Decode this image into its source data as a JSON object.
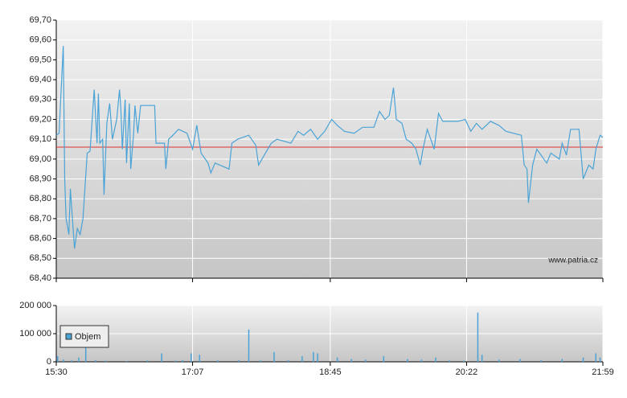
{
  "chart_data": [
    {
      "type": "line",
      "color": "#4aa3d6",
      "watermark": "www.patria.cz",
      "reference_line": 69.06,
      "reference_color": "#e03030",
      "x": [
        "15:30",
        "15:32",
        "15:35",
        "15:36",
        "15:37",
        "15:39",
        "15:40",
        "15:43",
        "15:45",
        "15:47",
        "15:49",
        "15:52",
        "15:54",
        "15:57",
        "15:59",
        "16:00",
        "16:01",
        "16:03",
        "16:04",
        "16:06",
        "16:08",
        "16:10",
        "16:13",
        "16:15",
        "16:16",
        "16:17",
        "16:19",
        "16:20",
        "16:22",
        "16:23",
        "16:25",
        "16:26",
        "16:28",
        "16:30",
        "16:33",
        "16:40",
        "16:41",
        "16:47",
        "16:48",
        "16:50",
        "16:53",
        "16:57",
        "17:03",
        "17:07",
        "17:10",
        "17:13",
        "17:18",
        "17:20",
        "17:23",
        "17:33",
        "17:35",
        "17:39",
        "17:47",
        "17:52",
        "17:54",
        "17:58",
        "18:03",
        "18:07",
        "18:17",
        "18:22",
        "18:26",
        "18:31",
        "18:36",
        "18:41",
        "18:46",
        "18:50",
        "18:55",
        "19:02",
        "19:08",
        "19:16",
        "19:20",
        "19:24",
        "19:27",
        "19:30",
        "19:32",
        "19:36",
        "19:39",
        "19:43",
        "19:46",
        "19:49",
        "19:51",
        "19:54",
        "19:59",
        "20:02",
        "20:05",
        "20:16",
        "20:21",
        "20:25",
        "20:29",
        "20:33",
        "20:39",
        "20:45",
        "20:50",
        "21:01",
        "21:03",
        "21:05",
        "21:06",
        "21:09",
        "21:12",
        "21:19",
        "21:22",
        "21:28",
        "21:30",
        "21:33",
        "21:36",
        "21:42",
        "21:45",
        "21:49",
        "21:52",
        "21:54",
        "21:57",
        "21:59"
      ],
      "values": [
        69.12,
        69.13,
        69.57,
        68.9,
        68.7,
        68.62,
        68.85,
        68.55,
        68.65,
        68.62,
        68.7,
        69.03,
        69.04,
        69.35,
        69.08,
        69.33,
        69.08,
        69.1,
        68.82,
        69.18,
        69.28,
        69.1,
        69.2,
        69.35,
        69.25,
        69.05,
        69.3,
        68.98,
        69.28,
        68.95,
        69.12,
        69.27,
        69.13,
        69.27,
        69.27,
        69.27,
        69.08,
        69.08,
        68.95,
        69.1,
        69.12,
        69.15,
        69.13,
        69.05,
        69.17,
        69.03,
        68.98,
        68.93,
        68.98,
        68.95,
        69.08,
        69.1,
        69.12,
        69.07,
        68.97,
        69.02,
        69.08,
        69.1,
        69.08,
        69.14,
        69.12,
        69.15,
        69.1,
        69.14,
        69.2,
        69.17,
        69.14,
        69.13,
        69.16,
        69.16,
        69.24,
        69.2,
        69.22,
        69.36,
        69.2,
        69.18,
        69.1,
        69.08,
        69.05,
        68.97,
        69.05,
        69.15,
        69.05,
        69.23,
        69.19,
        69.19,
        69.2,
        69.14,
        69.18,
        69.15,
        69.19,
        69.17,
        69.14,
        69.12,
        68.97,
        68.95,
        68.78,
        68.97,
        69.05,
        68.98,
        69.03,
        69.0,
        69.08,
        69.02,
        69.15,
        69.15,
        68.9,
        68.97,
        68.95,
        69.05,
        69.12,
        69.11
      ],
      "xlim": [
        "15:30",
        "21:59"
      ],
      "xticks": [
        "15:30",
        "17:07",
        "18:45",
        "20:22",
        "21:59"
      ],
      "ylim": [
        68.4,
        69.7
      ],
      "yticks": [
        {
          "value": 68.4,
          "label": "68,40"
        },
        {
          "value": 68.5,
          "label": "68,50"
        },
        {
          "value": 68.6,
          "label": "68,60"
        },
        {
          "value": 68.7,
          "label": "68,70"
        },
        {
          "value": 68.8,
          "label": "68,80"
        },
        {
          "value": 68.9,
          "label": "68,90"
        },
        {
          "value": 69.0,
          "label": "69,00"
        },
        {
          "value": 69.1,
          "label": "69,10"
        },
        {
          "value": 69.2,
          "label": "69,20"
        },
        {
          "value": 69.3,
          "label": "69,30"
        },
        {
          "value": 69.4,
          "label": "69,40"
        },
        {
          "value": 69.5,
          "label": "69,50"
        },
        {
          "value": 69.6,
          "label": "69,60"
        },
        {
          "value": 69.7,
          "label": "69,70"
        }
      ],
      "grid": true
    },
    {
      "type": "bar",
      "legend": "left",
      "x": [
        "15:31",
        "15:35",
        "15:41",
        "15:46",
        "15:51",
        "15:58",
        "16:05",
        "16:20",
        "16:35",
        "16:45",
        "16:55",
        "17:00",
        "17:06",
        "17:12",
        "17:25",
        "17:40",
        "17:47",
        "17:55",
        "18:05",
        "18:15",
        "18:25",
        "18:33",
        "18:36",
        "18:50",
        "19:00",
        "19:10",
        "19:23",
        "19:40",
        "19:50",
        "20:00",
        "20:10",
        "20:20",
        "20:30",
        "20:33",
        "20:45",
        "21:00",
        "21:15",
        "21:30",
        "21:45",
        "21:54",
        "21:57"
      ],
      "series": [
        {
          "name": "Objem",
          "color": "#4aa3d6",
          "values": [
            20000,
            8000,
            5000,
            15000,
            55000,
            6000,
            4000,
            3000,
            5000,
            30000,
            4000,
            6000,
            30000,
            25000,
            5000,
            6000,
            115000,
            5000,
            35000,
            6000,
            20000,
            35000,
            30000,
            15000,
            10000,
            8000,
            20000,
            10000,
            8000,
            15000,
            5000,
            4000,
            175000,
            25000,
            8000,
            10000,
            6000,
            10000,
            15000,
            30000,
            15000
          ]
        }
      ],
      "xlim": [
        "15:30",
        "21:59"
      ],
      "xticks": [
        "15:30",
        "17:07",
        "18:45",
        "20:22",
        "21:59"
      ],
      "xtick_labels": true,
      "ylim": [
        0,
        200000
      ],
      "yticks": [
        0,
        {
          "value": 100000,
          "label": "100 000"
        },
        {
          "value": 200000,
          "label": "200 000"
        }
      ],
      "grid": true
    }
  ]
}
